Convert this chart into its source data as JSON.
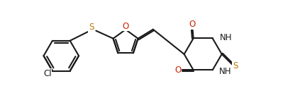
{
  "bg_color": "#ffffff",
  "line_color": "#1a1a1a",
  "o_color": "#cc2200",
  "s_color": "#bb7700",
  "n_color": "#1a1a1a",
  "cl_color": "#1a1a1a",
  "lw": 1.5,
  "fs": 8.5,
  "xlim": [
    -0.5,
    13.5
  ],
  "ylim": [
    -3.2,
    3.0
  ]
}
